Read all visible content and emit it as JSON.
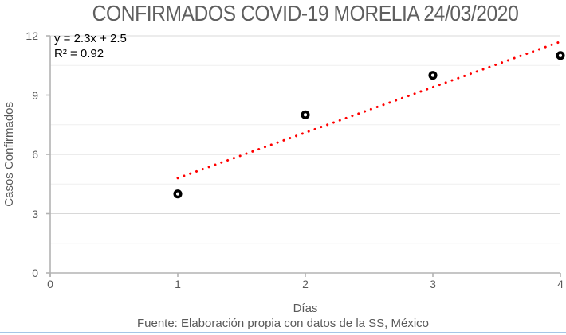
{
  "title": "CONFIRMADOS COVID-19 MORELIA 24/03/2020",
  "annotation": {
    "equation": "y = 2.3x + 2.5",
    "r2": "R² = 0.92"
  },
  "footer": "Fuente: Elaboración propia con datos de la SS, México",
  "colors": {
    "title_text": "#5f5f5f",
    "axis_text": "#595959",
    "annotation_text": "#000000",
    "gridline_major": "#d8d8d8",
    "gridline_minor": "#efefef",
    "axis_line": "#b3b3b3",
    "trend": "#ff0000",
    "marker_stroke": "#000000",
    "marker_fill": "#ffffff",
    "bottom_rule": "#a5c6e6"
  },
  "chart_data": {
    "type": "scatter",
    "title": "CONFIRMADOS COVID-19 MORELIA 24/03/2020",
    "xlabel": "Días",
    "ylabel": "Casos Confirmados",
    "x": [
      1,
      2,
      3,
      4
    ],
    "y": [
      4,
      8,
      10,
      11
    ],
    "xlim": [
      0,
      4
    ],
    "ylim": [
      0,
      12
    ],
    "x_ticks": [
      0,
      1,
      2,
      3,
      4
    ],
    "y_ticks": [
      0,
      3,
      6,
      9,
      12
    ],
    "y_minor_gridlines": [
      1.5,
      4.5,
      7.5,
      10.5
    ],
    "grid": "horizontal",
    "legend": "none",
    "marker": {
      "shape": "open-circle",
      "color": "#000000"
    },
    "trendline": {
      "type": "linear",
      "slope": 2.3,
      "intercept": 2.5,
      "r2": 0.92,
      "equation_label": "y = 2.3x + 2.5",
      "r2_label": "R² = 0.92",
      "color": "#ff0000",
      "style": "dotted",
      "x_range": [
        1,
        4.02
      ]
    }
  }
}
